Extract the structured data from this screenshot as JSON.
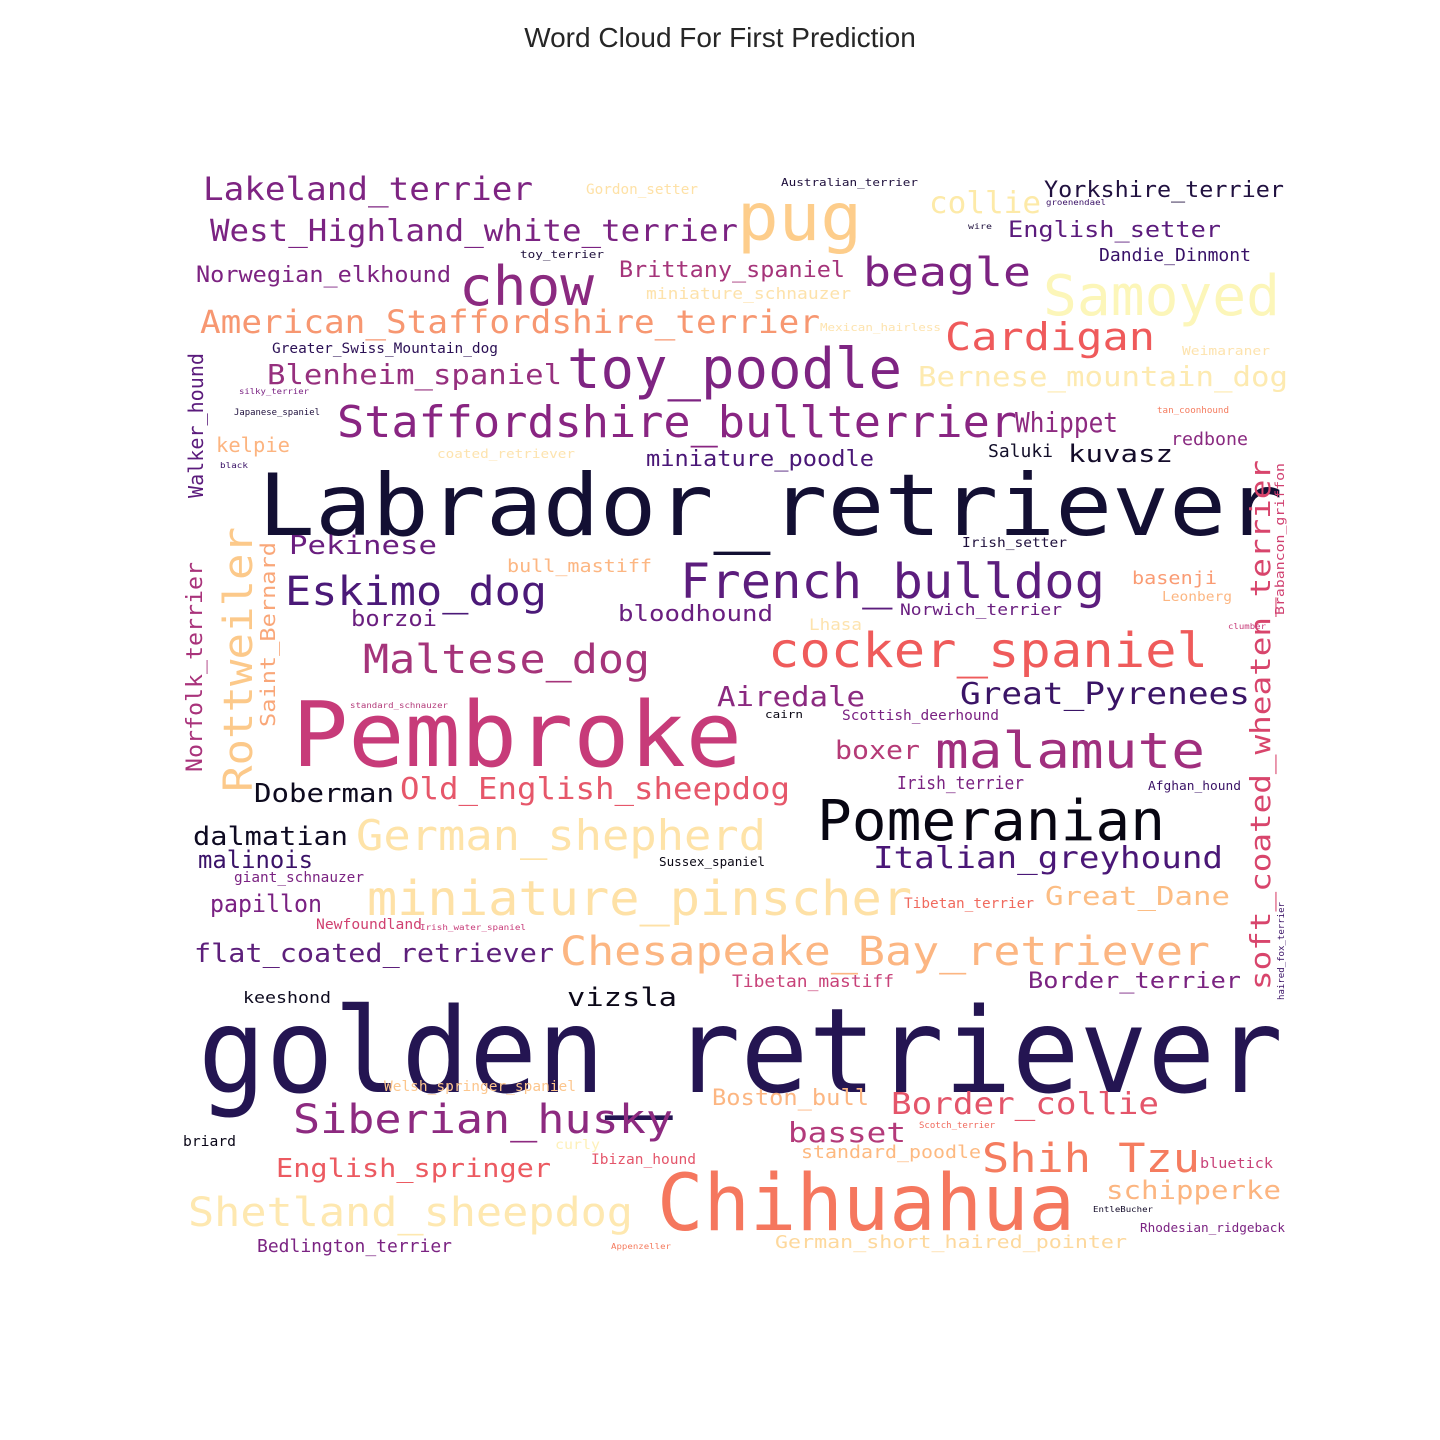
{
  "chart_data": {
    "type": "wordcloud",
    "title": "Word Cloud For First Prediction",
    "colormap": "magma",
    "words": [
      {
        "text": "golden_retriever",
        "color": "#241552"
      },
      {
        "text": "Labrador_retriever",
        "color": "#130f33"
      },
      {
        "text": "Pembroke",
        "color": "#c73b79"
      },
      {
        "text": "Chihuahua",
        "color": "#f5775e"
      },
      {
        "text": "pug",
        "color": "#fdcd8b"
      },
      {
        "text": "toy_poodle",
        "color": "#7e2482"
      },
      {
        "text": "Samoyed",
        "color": "#fcf6b9"
      },
      {
        "text": "French_bulldog",
        "color": "#5c1d7d"
      },
      {
        "text": "cocker_spaniel",
        "color": "#ef5b5b"
      },
      {
        "text": "Pomeranian",
        "color": "#080612"
      },
      {
        "text": "chow",
        "color": "#8b2a80"
      },
      {
        "text": "Staffordshire_bullterrier",
        "color": "#892582"
      },
      {
        "text": "malamute",
        "color": "#a02f7e"
      },
      {
        "text": "miniature_pinscher",
        "color": "#fee1a6"
      },
      {
        "text": "Rottweiler",
        "color": "#fcc98a"
      },
      {
        "text": "German_shepherd",
        "color": "#fee3a8"
      },
      {
        "text": "Chesapeake_Bay_retriever",
        "color": "#fcb682"
      },
      {
        "text": "Maltese_dog",
        "color": "#a5347a"
      },
      {
        "text": "Eskimo_dog",
        "color": "#4b1978"
      },
      {
        "text": "Siberian_husky",
        "color": "#8d2a80"
      },
      {
        "text": "Shih Tzu",
        "color": "#f57c5f"
      },
      {
        "text": "Shetland_sheepdog",
        "color": "#fee8b0"
      },
      {
        "text": "beagle",
        "color": "#7c2381"
      },
      {
        "text": "Cardigan",
        "color": "#ef5a5b"
      },
      {
        "text": "soft_coated_wheaten_terrier",
        "color": "#d8456c"
      },
      {
        "text": "American_Staffordshire_terrier",
        "color": "#f79771"
      },
      {
        "text": "Lakeland_terrier",
        "color": "#7e2482"
      },
      {
        "text": "West_Highland_white_terrier",
        "color": "#7b2382"
      },
      {
        "text": "Italian_greyhound",
        "color": "#4a1777"
      },
      {
        "text": "Great_Pyrenees",
        "color": "#3a1466"
      },
      {
        "text": "Border_collie",
        "color": "#e4556a"
      },
      {
        "text": "Old_English_sheepdog",
        "color": "#e6576a"
      },
      {
        "text": "collie",
        "color": "#fdeaa8"
      },
      {
        "text": "Bernese_mountain_dog",
        "color": "#fdeab0"
      },
      {
        "text": "Whippet",
        "color": "#8d2a80"
      },
      {
        "text": "Blenheim_spaniel",
        "color": "#96307e"
      },
      {
        "text": "Airedale",
        "color": "#8b2a80"
      },
      {
        "text": "Pekinese",
        "color": "#6a1e7f"
      },
      {
        "text": "Doberman",
        "color": "#0d0a1e"
      },
      {
        "text": "dalmatian",
        "color": "#0e0a22"
      },
      {
        "text": "basset",
        "color": "#b33a7a"
      },
      {
        "text": "boxer",
        "color": "#b53b77"
      },
      {
        "text": "vizsla",
        "color": "#0b0818"
      },
      {
        "text": "English_springer",
        "color": "#ec5a61"
      },
      {
        "text": "schipperke",
        "color": "#fcb580"
      },
      {
        "text": "Great_Dane",
        "color": "#fcbd84"
      },
      {
        "text": "flat_coated_retriever",
        "color": "#5d1f7b"
      },
      {
        "text": "papillon",
        "color": "#7a2182"
      },
      {
        "text": "malinois",
        "color": "#3a1268"
      },
      {
        "text": "Saint_Bernard",
        "color": "#f9a779"
      },
      {
        "text": "Norfolk_terrier",
        "color": "#a9337b"
      },
      {
        "text": "Walker_hound",
        "color": "#5b1b7c"
      },
      {
        "text": "Norwegian_elkhound",
        "color": "#7c2381"
      },
      {
        "text": "Brittany_spaniel",
        "color": "#a5347a"
      },
      {
        "text": "Yorkshire_terrier",
        "color": "#211140"
      },
      {
        "text": "English_setter",
        "color": "#5b1b7c"
      },
      {
        "text": "Dandie_Dinmont",
        "color": "#381167"
      },
      {
        "text": "kuvasz",
        "color": "#140c2a"
      },
      {
        "text": "miniature_poodle",
        "color": "#4a1777"
      },
      {
        "text": "bloodhound",
        "color": "#6a1f80"
      },
      {
        "text": "borzoi",
        "color": "#6a1e7f"
      },
      {
        "text": "Border_terrier",
        "color": "#7a2381"
      },
      {
        "text": "Boston_bull",
        "color": "#fcb682"
      },
      {
        "text": "standard_poodle",
        "color": "#fdb980"
      },
      {
        "text": "German_short_haired_pointer",
        "color": "#fdd89c"
      },
      {
        "text": "Bedlington_terrier",
        "color": "#7b2382"
      },
      {
        "text": "kelpie",
        "color": "#fcb480"
      },
      {
        "text": "Saluki",
        "color": "#130f2a"
      },
      {
        "text": "redbone",
        "color": "#8a2a80"
      },
      {
        "text": "basenji",
        "color": "#fa9b73"
      },
      {
        "text": "Norwich_terrier",
        "color": "#6a1f80"
      },
      {
        "text": "bull_mastiff",
        "color": "#fcb682"
      },
      {
        "text": "Irish_terrier",
        "color": "#7b2382"
      },
      {
        "text": "Tibetan_mastiff",
        "color": "#c84279"
      },
      {
        "text": "keeshond",
        "color": "#0d0a1e"
      },
      {
        "text": "Gordon_setter",
        "color": "#fee1a6"
      },
      {
        "text": "miniature_schnauzer",
        "color": "#fde2ab"
      },
      {
        "text": "Greater_Swiss_Mountain_dog",
        "color": "#2b1055"
      },
      {
        "text": "Lhasa",
        "color": "#fde3ae"
      },
      {
        "text": "Scottish_deerhound",
        "color": "#7a2182"
      },
      {
        "text": "Irish_setter",
        "color": "#1e0f3c"
      },
      {
        "text": "Sussex_spaniel",
        "color": "#0a0714"
      },
      {
        "text": "giant_schnauzer",
        "color": "#7b2382"
      },
      {
        "text": "Newfoundland",
        "color": "#d04070"
      },
      {
        "text": "Tibetan_terrier",
        "color": "#f06a5e"
      },
      {
        "text": "Welsh_springer_spaniel",
        "color": "#fcc68d"
      },
      {
        "text": "Ibizan_hound",
        "color": "#e4556a"
      },
      {
        "text": "briard",
        "color": "#0a0718"
      },
      {
        "text": "curly",
        "color": "#fef0b8"
      },
      {
        "text": "Leonberg",
        "color": "#fcb682"
      },
      {
        "text": "Brabancon_griffon",
        "color": "#d04070"
      },
      {
        "text": "Afghan_hound",
        "color": "#3a1266"
      },
      {
        "text": "Australian_terrier",
        "color": "#1e0f3c"
      },
      {
        "text": "toy_terrier",
        "color": "#1e0f3c"
      },
      {
        "text": "Mexican_hairless",
        "color": "#fde3ae"
      },
      {
        "text": "Weimaraner",
        "color": "#fde3ae"
      },
      {
        "text": "tan_coonhound",
        "color": "#f57c5f"
      },
      {
        "text": "coated_retriever",
        "color": "#fde3ae"
      },
      {
        "text": "silky_terrier",
        "color": "#7a2182"
      },
      {
        "text": "Japanese_spaniel",
        "color": "#1e0f3c"
      },
      {
        "text": "black",
        "color": "#3a1266"
      },
      {
        "text": "standard_schnauzer",
        "color": "#b33a7a"
      },
      {
        "text": "cairn",
        "color": "#0a0714"
      },
      {
        "text": "clumber",
        "color": "#c73b79"
      },
      {
        "text": "groenendael",
        "color": "#3a1266"
      },
      {
        "text": "wire",
        "color": "#1e0f3c"
      },
      {
        "text": "bluetick",
        "color": "#c84279"
      },
      {
        "text": "EntleBucher",
        "color": "#140c2a"
      },
      {
        "text": "Rhodesian_ridgeback",
        "color": "#7b2382"
      },
      {
        "text": "Scotch_terrier",
        "color": "#f06a5e"
      },
      {
        "text": "Appenzeller",
        "color": "#f57c5f"
      },
      {
        "text": "haired_fox_terrier",
        "color": "#3a1266"
      },
      {
        "text": "Irish_water_spaniel",
        "color": "#c73b79"
      }
    ]
  }
}
